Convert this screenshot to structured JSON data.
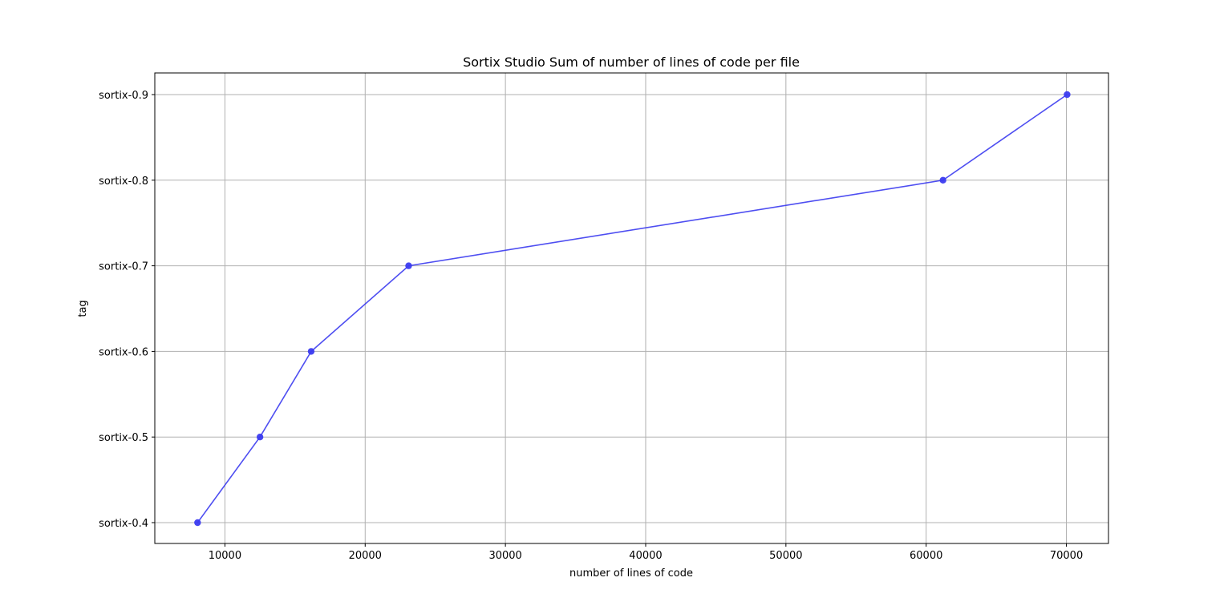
{
  "chart_data": {
    "type": "line",
    "title": "Sortix Studio Sum of number of lines of code per file",
    "xlabel": "number of lines of code",
    "ylabel": "tag",
    "xlim": [
      5000,
      73000
    ],
    "x_ticks": [
      10000,
      20000,
      30000,
      40000,
      50000,
      60000,
      70000
    ],
    "categories": [
      "sortix-0.4",
      "sortix-0.5",
      "sortix-0.6",
      "sortix-0.7",
      "sortix-0.8",
      "sortix-0.9"
    ],
    "grid": true,
    "series": [
      {
        "color": "#3b3bf0",
        "marker": "circle",
        "x": [
          8050,
          12500,
          16150,
          23100,
          61200,
          70050
        ],
        "y": [
          "sortix-0.4",
          "sortix-0.5",
          "sortix-0.6",
          "sortix-0.7",
          "sortix-0.8",
          "sortix-0.9"
        ]
      }
    ]
  }
}
